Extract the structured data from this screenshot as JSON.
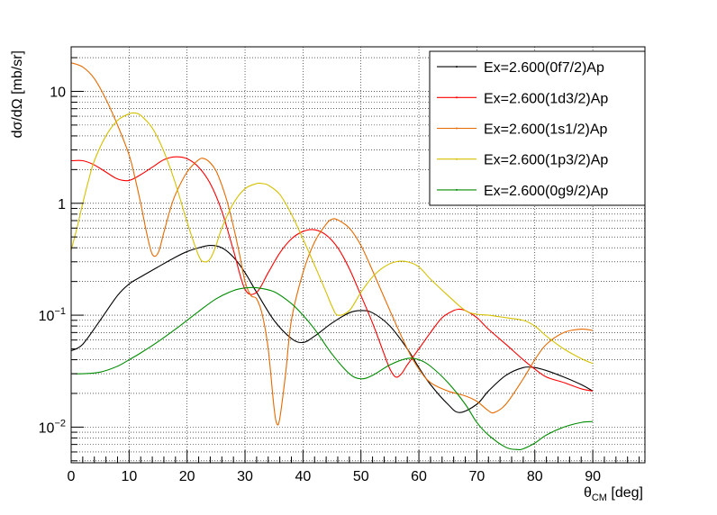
{
  "chart_data": {
    "type": "line",
    "title": "",
    "xlabel": "θ",
    "xlabel_sub": "CM",
    "xlabel_unit": " [deg]",
    "ylabel": "dσ/dΩ [mb/sr]",
    "xlim": [
      0,
      99
    ],
    "ylim": [
      0.0048,
      25
    ],
    "yscale": "log",
    "grid": true,
    "legend_position": "top-right",
    "x_ticks": [
      "0",
      "10",
      "20",
      "30",
      "40",
      "50",
      "60",
      "70",
      "80",
      "90"
    ],
    "y_tick_labels": [
      {
        "base": "10",
        "exp": "−2",
        "value": 0.01
      },
      {
        "base": "10",
        "exp": "−1",
        "value": 0.1
      },
      {
        "base": "1",
        "exp": "",
        "value": 1
      },
      {
        "base": "10",
        "exp": "",
        "value": 10
      }
    ],
    "series": [
      {
        "name": "Ex=2.600(0f7/2)Ap",
        "color": "#000000",
        "x": [
          0,
          2,
          5,
          8,
          10,
          12,
          15,
          18,
          20,
          22,
          24,
          26,
          28,
          30,
          32,
          35,
          38,
          40,
          42,
          45,
          48,
          50,
          52,
          55,
          58,
          60,
          62,
          65,
          67,
          70,
          72,
          75,
          78,
          80,
          82,
          85,
          88,
          90
        ],
        "y": [
          0.048,
          0.055,
          0.09,
          0.15,
          0.19,
          0.22,
          0.27,
          0.33,
          0.37,
          0.4,
          0.42,
          0.4,
          0.33,
          0.24,
          0.16,
          0.09,
          0.062,
          0.057,
          0.065,
          0.085,
          0.105,
          0.11,
          0.105,
          0.08,
          0.05,
          0.034,
          0.024,
          0.016,
          0.0135,
          0.016,
          0.021,
          0.029,
          0.034,
          0.034,
          0.032,
          0.028,
          0.024,
          0.021
        ]
      },
      {
        "name": "Ex=2.600(1d3/2)Ap",
        "color": "#ff0000",
        "x": [
          0,
          2,
          4,
          6,
          8,
          10,
          12,
          14,
          16,
          18,
          20,
          22,
          24,
          26,
          28,
          30,
          32,
          34,
          36,
          38,
          40,
          42,
          44,
          46,
          48,
          50,
          52,
          54,
          55,
          56,
          57,
          58,
          60,
          62,
          64,
          66,
          67,
          68,
          70,
          72,
          75,
          78,
          80,
          82,
          85,
          88,
          90
        ],
        "y": [
          2.4,
          2.4,
          2.2,
          1.9,
          1.65,
          1.6,
          1.8,
          2.1,
          2.45,
          2.6,
          2.5,
          2.1,
          1.5,
          0.85,
          0.38,
          0.17,
          0.16,
          0.24,
          0.36,
          0.48,
          0.56,
          0.58,
          0.52,
          0.4,
          0.26,
          0.15,
          0.085,
          0.045,
          0.033,
          0.028,
          0.03,
          0.036,
          0.05,
          0.07,
          0.095,
          0.11,
          0.113,
          0.11,
          0.095,
          0.075,
          0.055,
          0.04,
          0.033,
          0.028,
          0.025,
          0.022,
          0.021
        ]
      },
      {
        "name": "Ex=2.600(1s1/2)Ap",
        "color": "#e66a00",
        "x": [
          0,
          2,
          4,
          6,
          8,
          10,
          11,
          12,
          13,
          14,
          15,
          16,
          17,
          18,
          20,
          22,
          23,
          24,
          25,
          26,
          27,
          28,
          29,
          30,
          31,
          32,
          33,
          34,
          35,
          35.5,
          36,
          37,
          38,
          40,
          42,
          44,
          45,
          46,
          48,
          50,
          52,
          55,
          58,
          60,
          62,
          65,
          68,
          70,
          72,
          73,
          75,
          78,
          80,
          82,
          85,
          88,
          90
        ],
        "y": [
          18,
          16.5,
          13,
          8.5,
          5,
          2.7,
          1.7,
          1.0,
          0.55,
          0.35,
          0.36,
          0.55,
          0.85,
          1.2,
          1.9,
          2.45,
          2.5,
          2.3,
          1.95,
          1.45,
          1.0,
          0.62,
          0.36,
          0.2,
          0.15,
          0.14,
          0.1,
          0.05,
          0.015,
          0.0107,
          0.012,
          0.03,
          0.09,
          0.24,
          0.45,
          0.65,
          0.72,
          0.71,
          0.6,
          0.42,
          0.25,
          0.11,
          0.05,
          0.033,
          0.025,
          0.021,
          0.019,
          0.017,
          0.014,
          0.0135,
          0.016,
          0.027,
          0.04,
          0.055,
          0.07,
          0.075,
          0.073
        ]
      },
      {
        "name": "Ex=2.600(1p3/2)Ap",
        "color": "#d4c000",
        "x": [
          0,
          1,
          2,
          3,
          4,
          6,
          8,
          10,
          11,
          12,
          14,
          16,
          18,
          20,
          22,
          23,
          24,
          25,
          26,
          28,
          30,
          32,
          33,
          34,
          36,
          38,
          40,
          42,
          44,
          45,
          46,
          48,
          50,
          52,
          54,
          56,
          58,
          60,
          62,
          65,
          68,
          70,
          72,
          75,
          78,
          80,
          82,
          85,
          88,
          90
        ],
        "y": [
          0.38,
          0.6,
          1.0,
          1.6,
          2.4,
          4.0,
          5.5,
          6.3,
          6.4,
          6.1,
          4.7,
          2.9,
          1.5,
          0.68,
          0.34,
          0.3,
          0.32,
          0.42,
          0.6,
          1.0,
          1.35,
          1.5,
          1.5,
          1.45,
          1.2,
          0.8,
          0.48,
          0.28,
          0.16,
          0.12,
          0.1,
          0.11,
          0.16,
          0.22,
          0.27,
          0.3,
          0.3,
          0.27,
          0.21,
          0.15,
          0.11,
          0.102,
          0.1,
          0.095,
          0.09,
          0.08,
          0.065,
          0.05,
          0.041,
          0.037
        ]
      },
      {
        "name": "Ex=2.600(0g9/2)Ap",
        "color": "#008c00",
        "x": [
          0,
          2,
          5,
          8,
          10,
          12,
          15,
          18,
          20,
          22,
          25,
          28,
          30,
          32,
          35,
          38,
          40,
          42,
          45,
          48,
          50,
          52,
          55,
          58,
          60,
          62,
          65,
          68,
          70,
          72,
          75,
          77,
          78,
          80,
          82,
          85,
          88,
          90
        ],
        "y": [
          0.03,
          0.03,
          0.031,
          0.035,
          0.04,
          0.046,
          0.058,
          0.075,
          0.09,
          0.108,
          0.14,
          0.166,
          0.175,
          0.176,
          0.162,
          0.127,
          0.1,
          0.075,
          0.045,
          0.03,
          0.027,
          0.029,
          0.036,
          0.041,
          0.04,
          0.035,
          0.025,
          0.016,
          0.011,
          0.0085,
          0.0066,
          0.0063,
          0.0064,
          0.0072,
          0.0085,
          0.01,
          0.011,
          0.0112
        ]
      }
    ]
  }
}
